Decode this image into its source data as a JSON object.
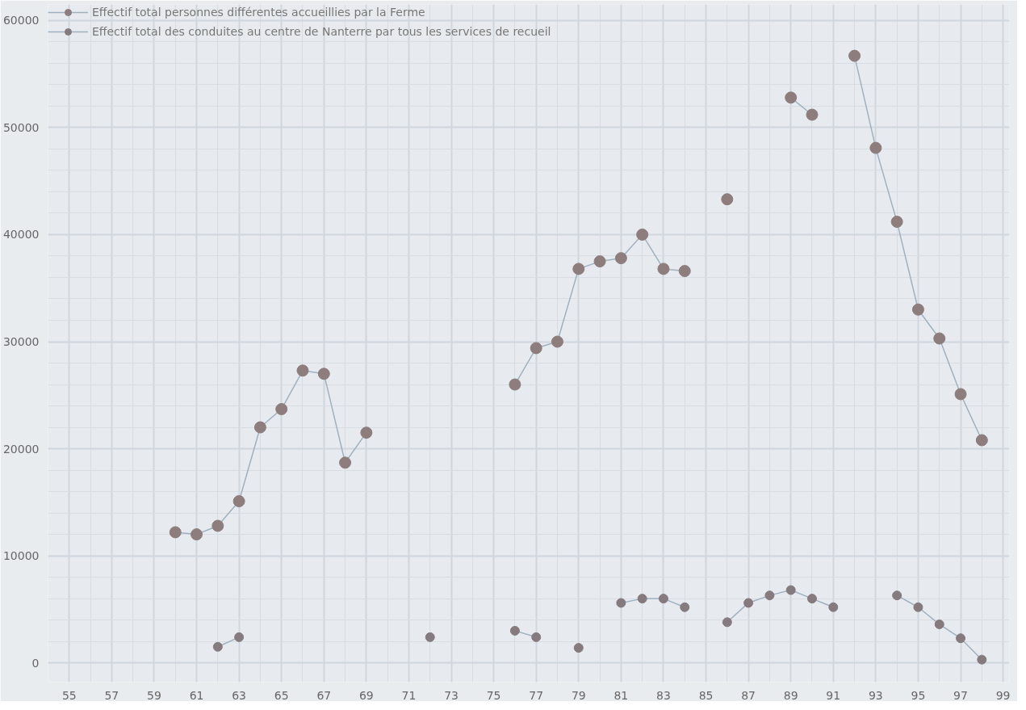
{
  "chart_data": {
    "type": "line",
    "x": [
      60,
      61,
      62,
      63,
      64,
      65,
      66,
      67,
      68,
      69,
      70,
      71,
      72,
      73,
      74,
      75,
      76,
      77,
      78,
      79,
      80,
      81,
      82,
      83,
      84,
      85,
      86,
      87,
      88,
      89,
      90,
      91,
      92,
      93,
      94,
      95,
      96,
      97,
      98
    ],
    "series": [
      {
        "name": "Effectif total personnes différentes accueillies par la Ferme",
        "color": "#8d7d7c",
        "values": [
          12200,
          12000,
          12800,
          15100,
          22000,
          23700,
          27300,
          27000,
          18700,
          21500,
          null,
          null,
          null,
          null,
          null,
          null,
          26000,
          29400,
          30000,
          36800,
          37500,
          37800,
          40000,
          36800,
          36600,
          null,
          43300,
          null,
          null,
          52800,
          51200,
          null,
          56700,
          48100,
          41200,
          33000,
          30300,
          25100,
          20800
        ]
      },
      {
        "name": "Effectif total des conduites au centre de Nanterre par tous les services de recueil",
        "color": "#857a7e",
        "values": [
          null,
          null,
          1500,
          2400,
          null,
          null,
          null,
          null,
          null,
          null,
          null,
          null,
          2400,
          null,
          null,
          null,
          3000,
          2400,
          null,
          1400,
          null,
          5600,
          6000,
          6000,
          5200,
          null,
          3800,
          5600,
          6300,
          6800,
          6000,
          5200,
          null,
          null,
          6300,
          5200,
          3600,
          2300,
          300
        ]
      }
    ],
    "xlim": [
      54,
      99.3
    ],
    "xticks": [
      55,
      57,
      59,
      61,
      63,
      65,
      67,
      69,
      71,
      73,
      75,
      77,
      79,
      81,
      83,
      85,
      87,
      89,
      91,
      93,
      95,
      97,
      99
    ],
    "ylim": [
      -1800,
      61500
    ],
    "yticks": [
      0,
      10000,
      20000,
      30000,
      40000,
      50000,
      60000
    ],
    "grid": true,
    "legend": "top",
    "marker": "circle",
    "line_style": "solid"
  }
}
